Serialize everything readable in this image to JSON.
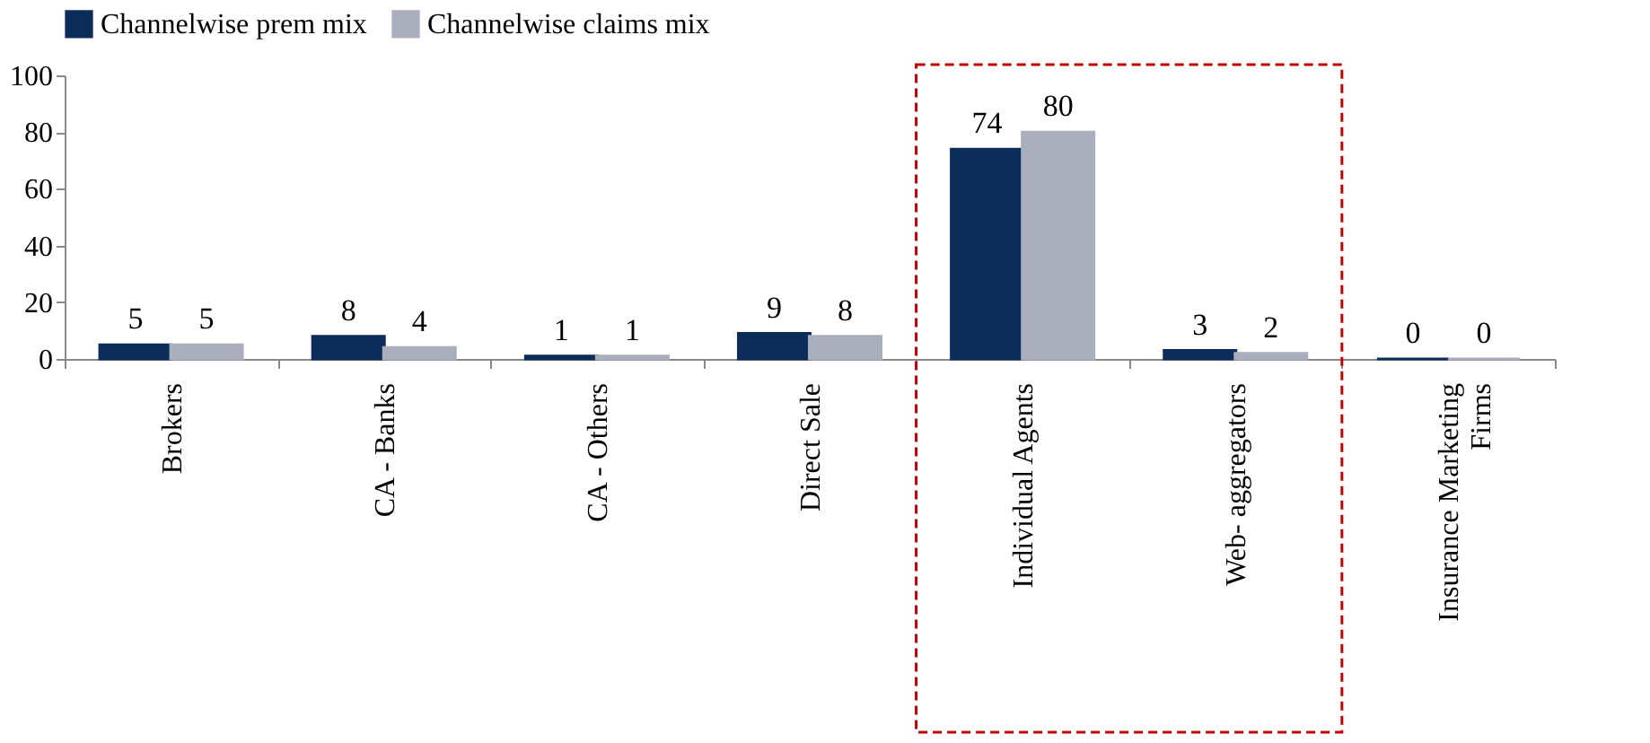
{
  "chart_data": {
    "type": "bar",
    "categories": [
      "Brokers",
      "CA - Banks",
      "CA - Others",
      "Direct Sale",
      "Individual Agents",
      "Web- aggregators",
      "Insurance Marketing Firms"
    ],
    "series": [
      {
        "name": "Channelwise prem mix",
        "color": "#0c2c5a",
        "values": [
          5,
          8,
          1,
          9,
          74,
          3,
          0
        ]
      },
      {
        "name": "Channelwise claims mix",
        "color": "#abaebd",
        "values": [
          5,
          4,
          1,
          8,
          80,
          2,
          0
        ]
      }
    ],
    "ylim": [
      0,
      100
    ],
    "yticks": [
      0,
      20,
      40,
      60,
      80,
      100
    ],
    "grid": false,
    "legend": "top",
    "data_labels": true
  }
}
